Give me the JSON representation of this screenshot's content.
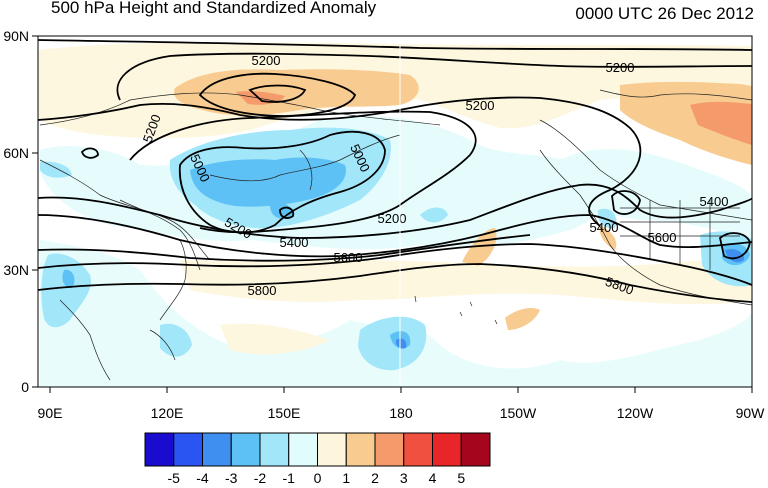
{
  "header": {
    "title": "500 hPa Height and Standardized Anomaly",
    "datetime": "0000 UTC 26 Dec 2012"
  },
  "map": {
    "lat_ticks": [
      "90N",
      "60N",
      "30N",
      "0"
    ],
    "lon_ticks": [
      "90E",
      "120E",
      "150E",
      "180",
      "150W",
      "120W",
      "90W"
    ],
    "contour_labels": [
      {
        "text": "5200"
      },
      {
        "text": "5200"
      },
      {
        "text": "5200"
      },
      {
        "text": "5200"
      },
      {
        "text": "5200"
      },
      {
        "text": "5400"
      },
      {
        "text": "5600"
      },
      {
        "text": "5800"
      },
      {
        "text": "5000"
      },
      {
        "text": "5000"
      },
      {
        "text": "5200"
      },
      {
        "text": "5400"
      },
      {
        "text": "5600"
      },
      {
        "text": "5400"
      },
      {
        "text": "5800"
      }
    ]
  },
  "colorbar": {
    "labels": [
      "-5",
      "-4",
      "-3",
      "-2",
      "-1",
      "0",
      "1",
      "2",
      "3",
      "4",
      "5"
    ],
    "colors": [
      "#1a0ccf",
      "#2b55f2",
      "#3f8ff1",
      "#5ec1f5",
      "#a2e6fa",
      "#e0fcfc",
      "#fdf6dd",
      "#f8cb90",
      "#f49a6b",
      "#f05040",
      "#e8262a",
      "#a5061d"
    ]
  }
}
